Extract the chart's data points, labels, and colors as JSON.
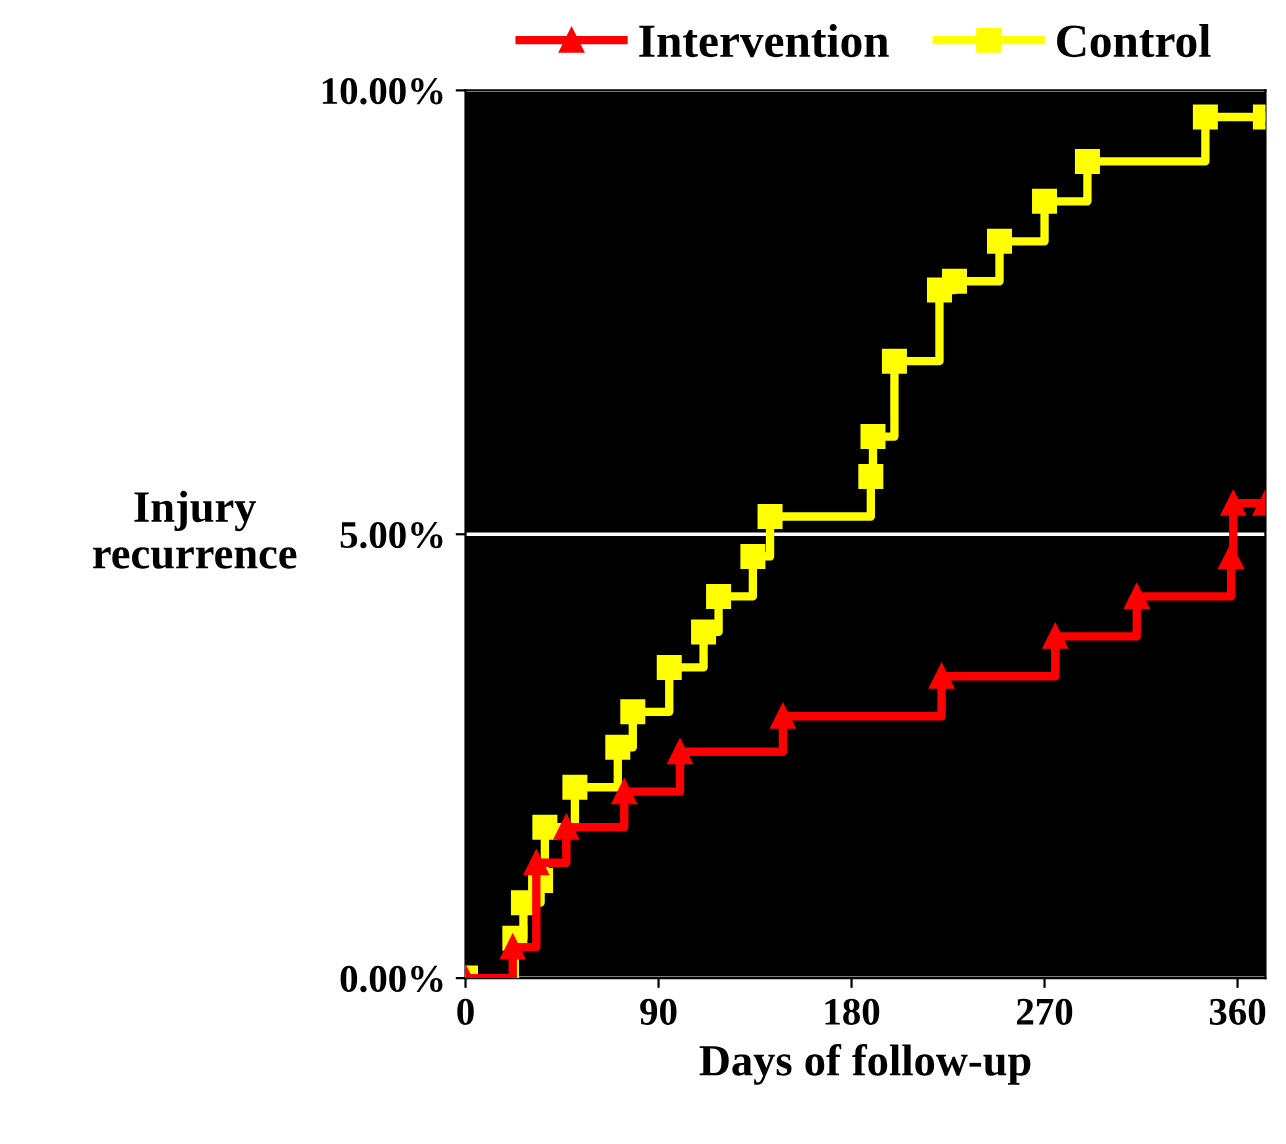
{
  "chart_data": {
    "type": "step",
    "xlabel": "Days of follow-up",
    "ylabel": "Injury\nrecurrence",
    "xlim": [
      0,
      373
    ],
    "xticks": [
      0,
      90,
      180,
      270,
      360
    ],
    "ylim": [
      0,
      10
    ],
    "yticks": [
      {
        "value": 0,
        "label": "0.00%"
      },
      {
        "value": 5,
        "label": "5.00%"
      },
      {
        "value": 10,
        "label": "10.00%"
      }
    ],
    "grid": "y",
    "legend": "top",
    "series": [
      {
        "name": "Intervention",
        "color": "#ff0000",
        "marker": "triangle",
        "x": [
          0,
          22,
          33,
          47,
          74,
          100,
          148,
          222,
          275,
          313,
          357,
          358,
          373
        ],
        "values": [
          0,
          0.35,
          1.3,
          1.7,
          2.1,
          2.55,
          2.95,
          3.4,
          3.85,
          4.3,
          4.75,
          5.35,
          5.35
        ]
      },
      {
        "name": "Control",
        "color": "#ffff00",
        "marker": "square",
        "x": [
          0,
          23,
          27,
          35,
          37,
          51,
          71,
          78,
          95,
          111,
          118,
          134,
          142,
          189,
          190,
          200,
          221,
          228,
          249,
          270,
          290,
          345,
          373
        ],
        "values": [
          0,
          0.45,
          0.85,
          1.1,
          1.7,
          2.15,
          2.6,
          3.0,
          3.5,
          3.9,
          4.3,
          4.75,
          5.2,
          5.65,
          6.1,
          6.95,
          7.75,
          7.85,
          8.3,
          8.75,
          9.2,
          9.7,
          9.7
        ]
      }
    ]
  }
}
